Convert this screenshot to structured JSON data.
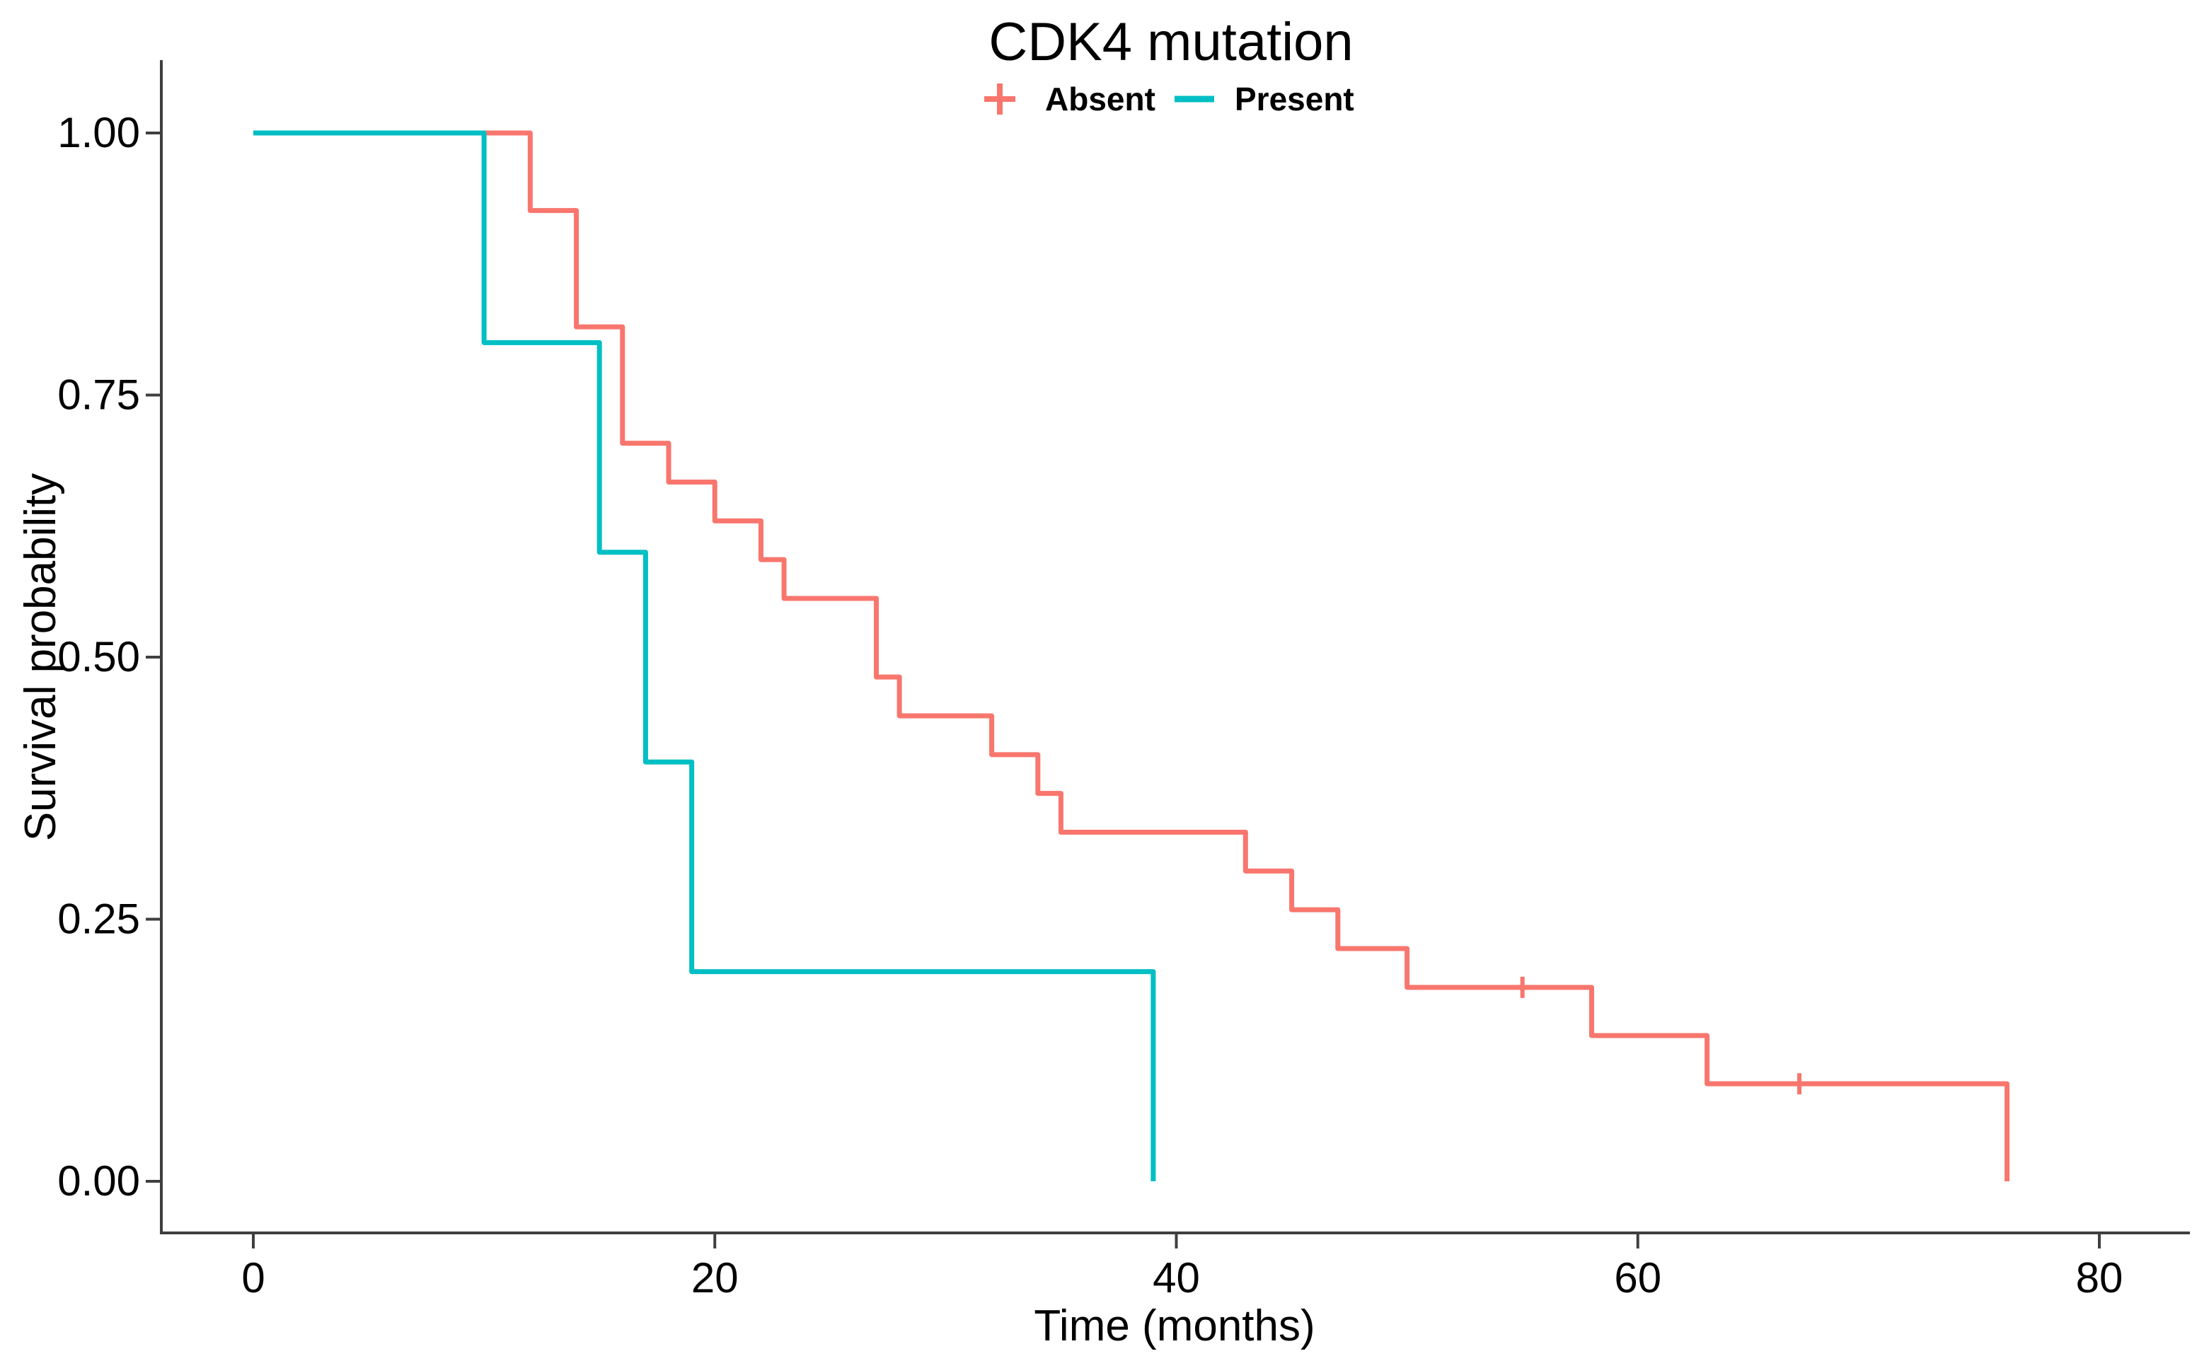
{
  "title": "CDK4 mutation",
  "legend": {
    "position": "top",
    "items": [
      {
        "label": "Absent",
        "color": "#F8766D",
        "marker": "plus-cross-icon"
      },
      {
        "label": "Present",
        "color": "#00BFC4",
        "marker": "line-key-icon"
      }
    ]
  },
  "axes": {
    "x": {
      "label": "Time (months)",
      "tick_labels": [
        "0",
        "20",
        "40",
        "60",
        "80"
      ],
      "range": [
        0,
        80
      ]
    },
    "y": {
      "label": "Survival probability",
      "tick_labels": [
        "1.00",
        "0.75",
        "0.50",
        "0.25",
        "0.00"
      ],
      "range": [
        0,
        1
      ]
    }
  },
  "chart_data": {
    "type": "line",
    "subtype": "kaplan-meier-step",
    "title": "CDK4 mutation",
    "xlabel": "Time (months)",
    "ylabel": "Survival probability",
    "xlim": [
      0,
      80
    ],
    "ylim": [
      0,
      1
    ],
    "grid": false,
    "legend_position": "top",
    "x_ticks": [
      "0",
      "20",
      "40",
      "60",
      "80"
    ],
    "x_tick_values": [
      0,
      20,
      40,
      60,
      80
    ],
    "y_ticks": [
      "1.00",
      "0.75",
      "0.50",
      "0.25",
      "0.00"
    ],
    "y_tick_values": [
      1.0,
      0.75,
      0.5,
      0.25,
      0.0
    ],
    "series": [
      {
        "name": "Absent",
        "color": "#F8766D",
        "start": {
          "time": 0,
          "survival": 1.0
        },
        "steps": [
          {
            "time": 12,
            "survival": 0.926
          },
          {
            "time": 14,
            "survival": 0.815
          },
          {
            "time": 16,
            "survival": 0.704
          },
          {
            "time": 18,
            "survival": 0.667
          },
          {
            "time": 20,
            "survival": 0.63
          },
          {
            "time": 22,
            "survival": 0.593
          },
          {
            "time": 23,
            "survival": 0.556
          },
          {
            "time": 27,
            "survival": 0.481
          },
          {
            "time": 28,
            "survival": 0.444
          },
          {
            "time": 32,
            "survival": 0.407
          },
          {
            "time": 34,
            "survival": 0.37
          },
          {
            "time": 35,
            "survival": 0.333
          },
          {
            "time": 43,
            "survival": 0.296
          },
          {
            "time": 45,
            "survival": 0.259
          },
          {
            "time": 47,
            "survival": 0.222
          },
          {
            "time": 50,
            "survival": 0.185
          },
          {
            "time": 58,
            "survival": 0.139
          },
          {
            "time": 63,
            "survival": 0.093
          },
          {
            "time": 76,
            "survival": 0.0
          }
        ],
        "censors": [
          {
            "time": 55,
            "survival": 0.185
          },
          {
            "time": 67,
            "survival": 0.093
          }
        ]
      },
      {
        "name": "Present",
        "color": "#00BFC4",
        "start": {
          "time": 0,
          "survival": 1.0
        },
        "steps": [
          {
            "time": 10,
            "survival": 0.8
          },
          {
            "time": 15,
            "survival": 0.6
          },
          {
            "time": 17,
            "survival": 0.4
          },
          {
            "time": 19,
            "survival": 0.2
          },
          {
            "time": 39,
            "survival": 0.0
          }
        ],
        "censors": []
      }
    ]
  },
  "colors": {
    "absent": "#F8766D",
    "present": "#00BFC4",
    "axis": "#3F3F3F",
    "text": "#000000",
    "background": "#FFFFFF"
  }
}
